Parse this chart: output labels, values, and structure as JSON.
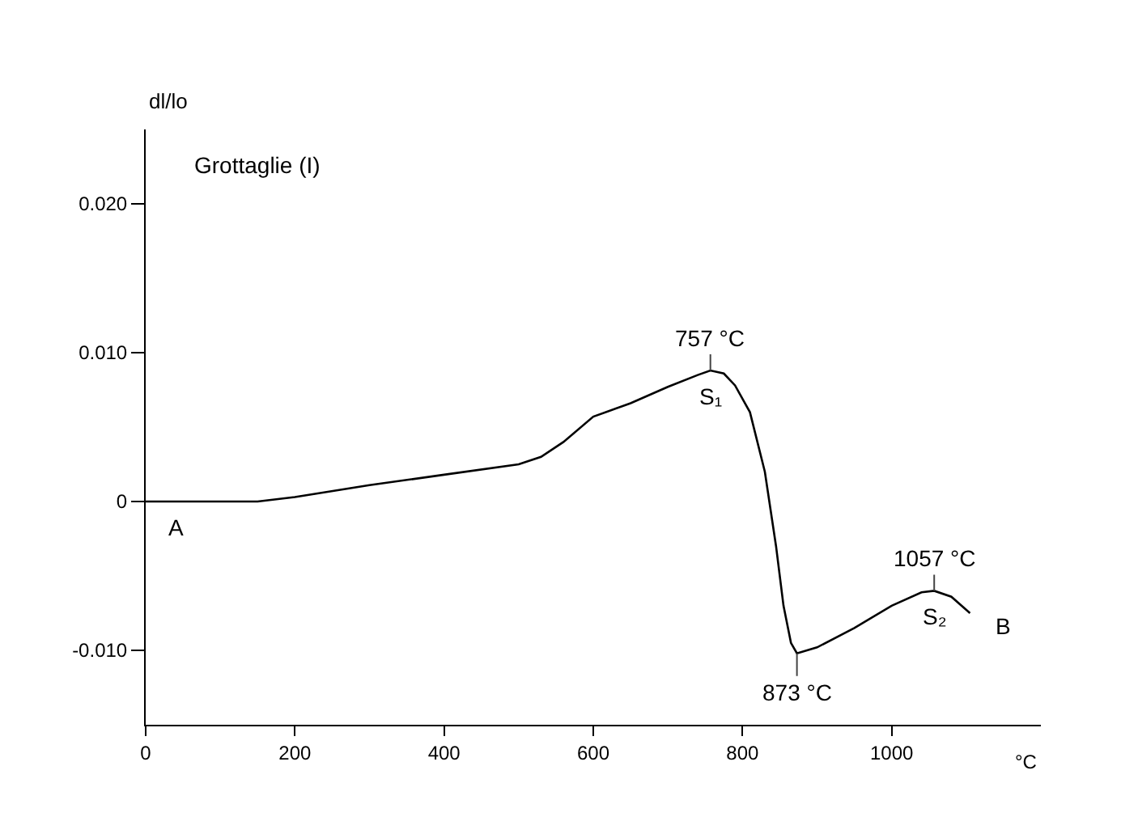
{
  "chart_data": {
    "type": "line",
    "title": "Grottaglie (I)",
    "xlabel": "°C",
    "ylabel": "dl/lo",
    "x": [
      0,
      150,
      200,
      300,
      400,
      500,
      530,
      560,
      600,
      650,
      700,
      740,
      757,
      775,
      790,
      810,
      830,
      845,
      855,
      865,
      873,
      900,
      950,
      1000,
      1040,
      1057,
      1080,
      1105
    ],
    "series": [
      {
        "color": "#000000",
        "values": [
          0,
          0,
          0.0003,
          0.0011,
          0.0018,
          0.0025,
          0.003,
          0.004,
          0.0057,
          0.0066,
          0.0077,
          0.0085,
          0.0088,
          0.0086,
          0.0078,
          0.006,
          0.002,
          -0.003,
          -0.007,
          -0.0095,
          -0.0102,
          -0.0098,
          -0.0085,
          -0.007,
          -0.0061,
          -0.006,
          -0.0064,
          -0.0075
        ]
      }
    ],
    "xlim": [
      0,
      1200
    ],
    "ylim": [
      -0.015,
      0.025
    ],
    "xticks": [
      0,
      200,
      400,
      600,
      800,
      1000
    ],
    "yticks": [
      {
        "value": -0.01,
        "label": "-0.010"
      },
      0,
      {
        "value": 0.01,
        "label": "0.010"
      },
      {
        "value": 0.02,
        "label": "0.020"
      }
    ],
    "marker": "none",
    "line_style": "solid",
    "annotations": [
      {
        "text": "757 °C",
        "x": 757,
        "y": 0.0088
      },
      {
        "text": "S₁",
        "x": 757,
        "y": 0.0088
      },
      {
        "text": "873 °C",
        "x": 873,
        "y": -0.0102
      },
      {
        "text": "1057 °C",
        "x": 1057,
        "y": -0.006
      },
      {
        "text": "S₂",
        "x": 1057,
        "y": -0.006
      },
      {
        "text": "A",
        "x": 0,
        "y": 0
      },
      {
        "text": "B",
        "x": 1105,
        "y": -0.0075
      }
    ]
  }
}
